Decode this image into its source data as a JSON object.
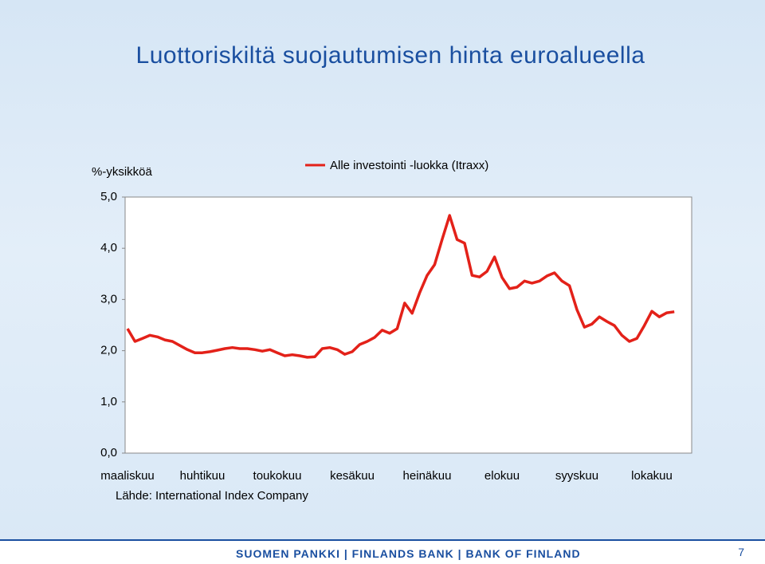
{
  "chart_data": {
    "type": "line",
    "title": "Luottoriskiltä suojautumisen hinta euroalueella",
    "y_label": "%-yksikköä",
    "source": "Lähde: International Index Company",
    "ylim": [
      0,
      5
    ],
    "yticks": [
      {
        "value": 0,
        "label": "0,0"
      },
      {
        "value": 1,
        "label": "1,0"
      },
      {
        "value": 2,
        "label": "2,0"
      },
      {
        "value": 3,
        "label": "3,0"
      },
      {
        "value": 4,
        "label": "4,0"
      },
      {
        "value": 5,
        "label": "5,0"
      }
    ],
    "categories": [
      "maaliskuu",
      null,
      null,
      null,
      null,
      null,
      null,
      null,
      null,
      null,
      "huhtikuu",
      null,
      null,
      null,
      null,
      null,
      null,
      null,
      null,
      null,
      "toukokuu",
      null,
      null,
      null,
      null,
      null,
      null,
      null,
      null,
      null,
      "kesäkuu",
      null,
      null,
      null,
      null,
      null,
      null,
      null,
      null,
      null,
      "heinäkuu",
      null,
      null,
      null,
      null,
      null,
      null,
      null,
      null,
      null,
      "elokuu",
      null,
      null,
      null,
      null,
      null,
      null,
      null,
      null,
      null,
      "syyskuu",
      null,
      null,
      null,
      null,
      null,
      null,
      null,
      null,
      null,
      "lokakuu",
      null,
      null,
      null
    ],
    "series": [
      {
        "name": "Alle investointi -luokka (Itraxx)",
        "color": "#e32119",
        "values": [
          2.43,
          2.18,
          2.24,
          2.3,
          2.27,
          2.21,
          2.18,
          2.1,
          2.02,
          1.96,
          1.96,
          1.98,
          2.01,
          2.04,
          2.06,
          2.04,
          2.04,
          2.02,
          1.99,
          2.02,
          1.96,
          1.9,
          1.92,
          1.9,
          1.87,
          1.88,
          2.04,
          2.06,
          2.02,
          1.93,
          1.98,
          2.12,
          2.18,
          2.26,
          2.4,
          2.34,
          2.43,
          2.93,
          2.73,
          3.13,
          3.47,
          3.68,
          4.17,
          4.64,
          4.17,
          4.1,
          3.47,
          3.44,
          3.55,
          3.83,
          3.43,
          3.21,
          3.24,
          3.36,
          3.32,
          3.36,
          3.46,
          3.52,
          3.36,
          3.27,
          2.8,
          2.46,
          2.52,
          2.66,
          2.57,
          2.49,
          2.3,
          2.18,
          2.24,
          2.49,
          2.77,
          2.66,
          2.74,
          2.76
        ]
      }
    ],
    "grid": false
  },
  "footer": {
    "text": "SUOMEN PANKKI | FINLANDS BANK | BANK OF FINLAND",
    "page": "7"
  }
}
